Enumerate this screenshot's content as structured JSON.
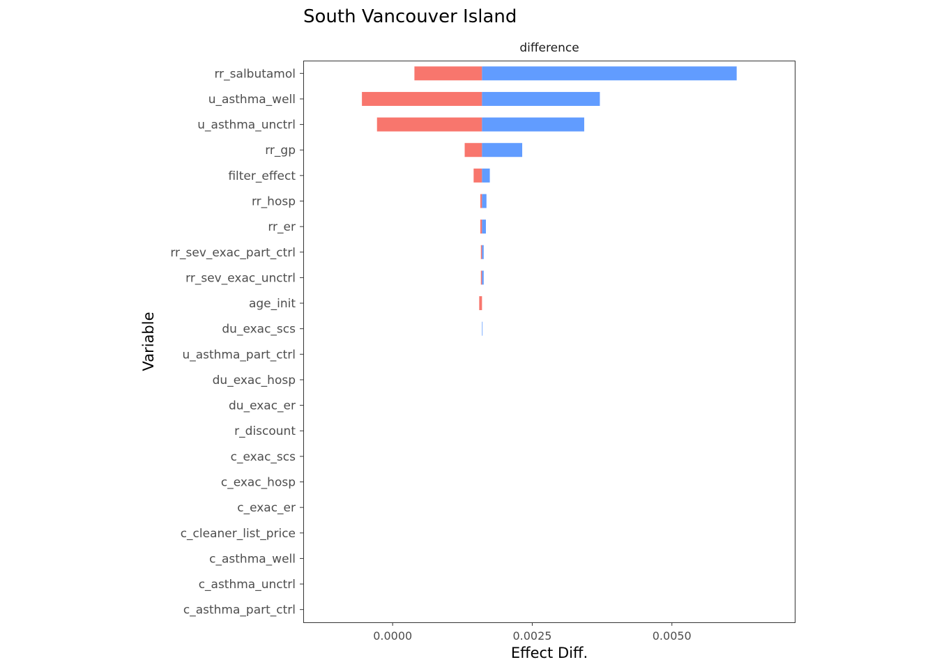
{
  "chart_data": {
    "type": "bar",
    "orientation": "horizontal",
    "title": "South Vancouver Island",
    "facet_label": "difference",
    "xlabel": "Effect Diff.",
    "ylabel": "Variable",
    "baseline": 0.0016,
    "xlim": [
      -0.0016,
      0.0072
    ],
    "x_ticks": [
      0.0,
      0.0025,
      0.005
    ],
    "x_tick_labels": [
      "0.0000",
      "0.0025",
      "0.0050"
    ],
    "categories": [
      "rr_salbutamol",
      "u_asthma_well",
      "u_asthma_unctrl",
      "rr_gp",
      "filter_effect",
      "rr_hosp",
      "rr_er",
      "rr_sev_exac_part_ctrl",
      "rr_sev_exac_unctrl",
      "age_init",
      "du_exac_scs",
      "u_asthma_part_ctrl",
      "du_exac_hosp",
      "du_exac_er",
      "r_discount",
      "c_exac_scs",
      "c_exac_hosp",
      "c_exac_er",
      "c_cleaner_list_price",
      "c_asthma_well",
      "c_asthma_unctrl",
      "c_asthma_part_ctrl"
    ],
    "series": [
      {
        "color": "#f8766d",
        "low": [
          0.00039,
          -0.00055,
          -0.00028,
          0.00129,
          0.00145,
          0.00157,
          0.00157,
          0.00158,
          0.00158,
          0.00155,
          0.0016,
          0.0016,
          0.0016,
          0.0016,
          0.0016,
          0.0016,
          0.0016,
          0.0016,
          0.0016,
          0.0016,
          0.0016,
          0.0016
        ]
      },
      {
        "color": "#619cff",
        "high": [
          0.00616,
          0.00371,
          0.00343,
          0.00232,
          0.00174,
          0.00168,
          0.00167,
          0.00163,
          0.00163,
          0.0016,
          0.00161,
          0.0016,
          0.0016,
          0.0016,
          0.0016,
          0.0016,
          0.0016,
          0.0016,
          0.0016,
          0.0016,
          0.0016,
          0.0016
        ]
      }
    ],
    "grid": false,
    "legend": "none"
  }
}
